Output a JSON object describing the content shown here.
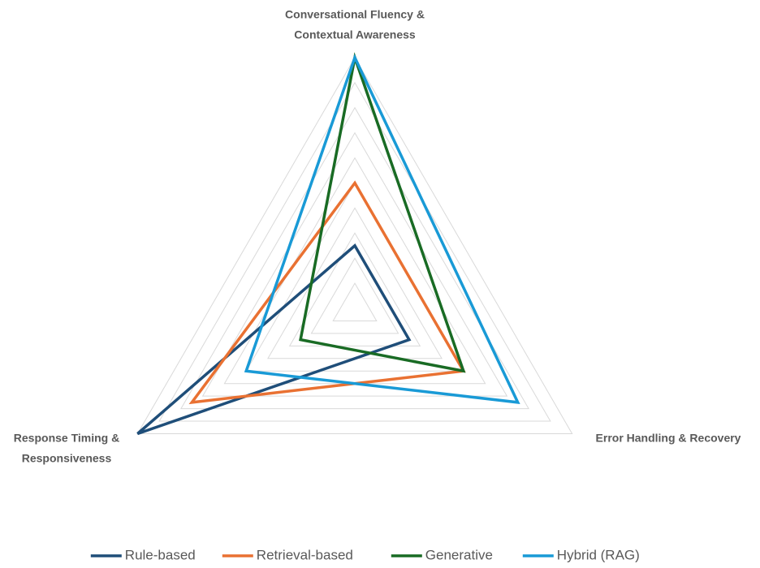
{
  "chart_data": {
    "type": "radar",
    "categories": [
      [
        "Conversational Fluency &",
        "Contextual Awareness"
      ],
      [
        "Error Handling & Recovery"
      ],
      [
        "Response Timing &",
        "Responsiveness"
      ]
    ],
    "rlim": [
      0,
      10
    ],
    "rticks": [
      1,
      2,
      3,
      4,
      5,
      6,
      7,
      8,
      9,
      10
    ],
    "grid": true,
    "legend": "bottom",
    "series": [
      {
        "name": "Rule-based",
        "color": "#1f4e79",
        "values": [
          2.5,
          2.5,
          10
        ]
      },
      {
        "name": "Retrieval-based",
        "color": "#e97132",
        "values": [
          5,
          5,
          7.5
        ]
      },
      {
        "name": "Generative",
        "color": "#196b24",
        "values": [
          10,
          5,
          2.5
        ]
      },
      {
        "name": "Hybrid (RAG)",
        "color": "#199ad6",
        "values": [
          10,
          7.5,
          5
        ]
      }
    ]
  }
}
